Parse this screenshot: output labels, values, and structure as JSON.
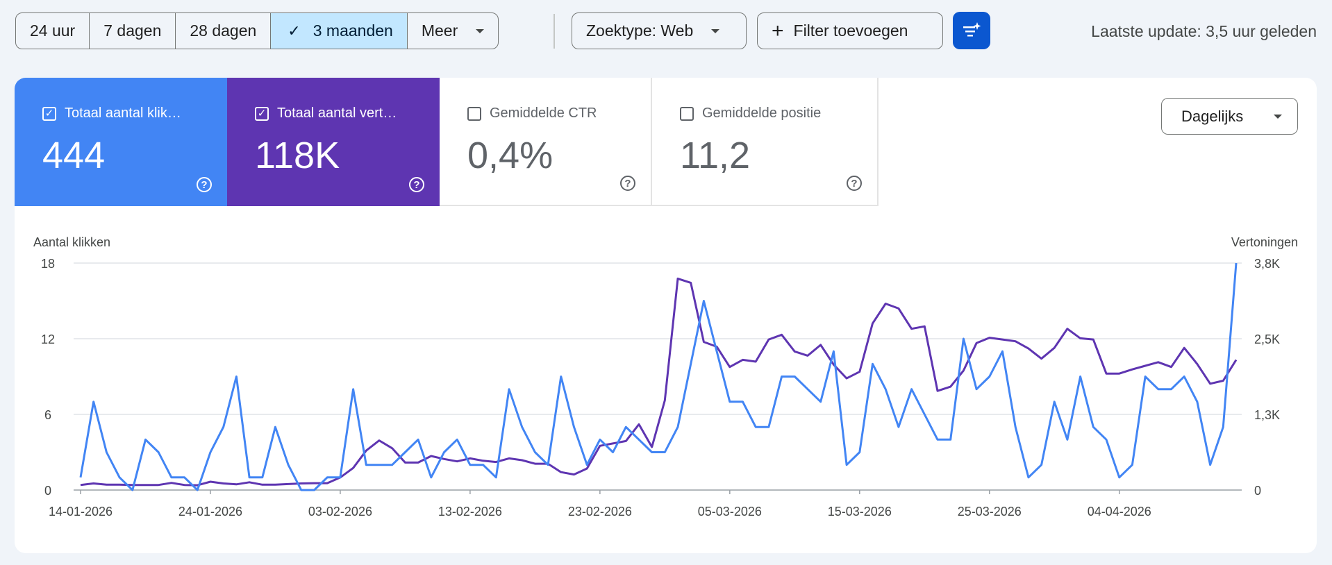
{
  "toolbar": {
    "ranges": [
      {
        "label": "24 uur",
        "selected": false
      },
      {
        "label": "7 dagen",
        "selected": false
      },
      {
        "label": "28 dagen",
        "selected": false
      },
      {
        "label": "3 maanden",
        "selected": true
      },
      {
        "label": "Meer",
        "selected": false
      }
    ],
    "search_type": "Zoektype: Web",
    "add_filter": "Filter toevoegen",
    "last_update": "Laatste update: 3,5 uur geleden",
    "icons": {
      "check": "check-icon",
      "add": "plus-icon",
      "filter_ai": "filter-sparkle-icon",
      "dropdown": "caret-down-icon"
    }
  },
  "metrics": [
    {
      "label": "Totaal aantal klik…",
      "value": "444",
      "checked": true,
      "color": "#4285f4"
    },
    {
      "label": "Totaal aantal vert…",
      "value": "118K",
      "checked": true,
      "color": "#5e35b1"
    },
    {
      "label": "Gemiddelde CTR",
      "value": "0,4%",
      "checked": false
    },
    {
      "label": "Gemiddelde positie",
      "value": "11,2",
      "checked": false
    }
  ],
  "granularity": "Dagelijks",
  "chart_data": {
    "type": "line",
    "start_date": "14-01-2026",
    "x_tick_labels": [
      "14-01-2026",
      "24-01-2026",
      "03-02-2026",
      "13-02-2026",
      "23-02-2026",
      "05-03-2026",
      "15-03-2026",
      "25-03-2026",
      "04-04-2026"
    ],
    "ylabel_left": "Aantal klikken",
    "ylabel_right": "Vertoningen",
    "y_left_ticks": [
      "0",
      "6",
      "12",
      "18"
    ],
    "y_right_ticks": [
      "0",
      "1,3K",
      "2,5K",
      "3,8K"
    ],
    "ylim_left": [
      0,
      18
    ],
    "ylim_right": [
      0,
      3800
    ],
    "grid": true,
    "series": [
      {
        "name": "Aantal klikken",
        "axis": "left",
        "color": "#4285f4",
        "values": [
          1,
          7,
          3,
          1,
          0,
          4,
          3,
          1,
          1,
          0,
          3,
          5,
          9,
          1,
          1,
          5,
          2,
          0,
          0,
          1,
          1,
          8,
          2,
          2,
          2,
          3,
          4,
          1,
          3,
          4,
          2,
          2,
          1,
          8,
          5,
          3,
          2,
          9,
          5,
          2,
          4,
          3,
          5,
          4,
          3,
          3,
          5,
          10,
          15,
          11,
          7,
          7,
          5,
          5,
          9,
          9,
          8,
          7,
          11,
          2,
          3,
          10,
          8,
          5,
          8,
          6,
          4,
          4,
          12,
          8,
          9,
          11,
          5,
          1,
          2,
          7,
          4,
          9,
          5,
          4,
          1,
          2,
          9,
          8,
          8,
          9,
          7,
          2,
          5,
          18
        ]
      },
      {
        "name": "Vertoningen",
        "axis": "right",
        "color": "#5e35b1",
        "values": [
          85,
          110,
          90,
          90,
          85,
          85,
          85,
          120,
          85,
          80,
          140,
          110,
          95,
          130,
          90,
          90,
          100,
          110,
          115,
          115,
          210,
          370,
          660,
          830,
          700,
          460,
          460,
          570,
          520,
          480,
          530,
          490,
          470,
          530,
          500,
          440,
          440,
          300,
          260,
          360,
          740,
          780,
          820,
          1100,
          720,
          1500,
          3540,
          3470,
          2480,
          2400,
          2060,
          2180,
          2150,
          2520,
          2600,
          2320,
          2250,
          2430,
          2100,
          1870,
          1980,
          2790,
          3120,
          3040,
          2700,
          2740,
          1660,
          1730,
          2000,
          2460,
          2550,
          2520,
          2490,
          2370,
          2200,
          2380,
          2700,
          2540,
          2520,
          1950,
          1950,
          2020,
          2080,
          2140,
          2060,
          2380,
          2110,
          1780,
          1830,
          2180
        ]
      }
    ]
  }
}
